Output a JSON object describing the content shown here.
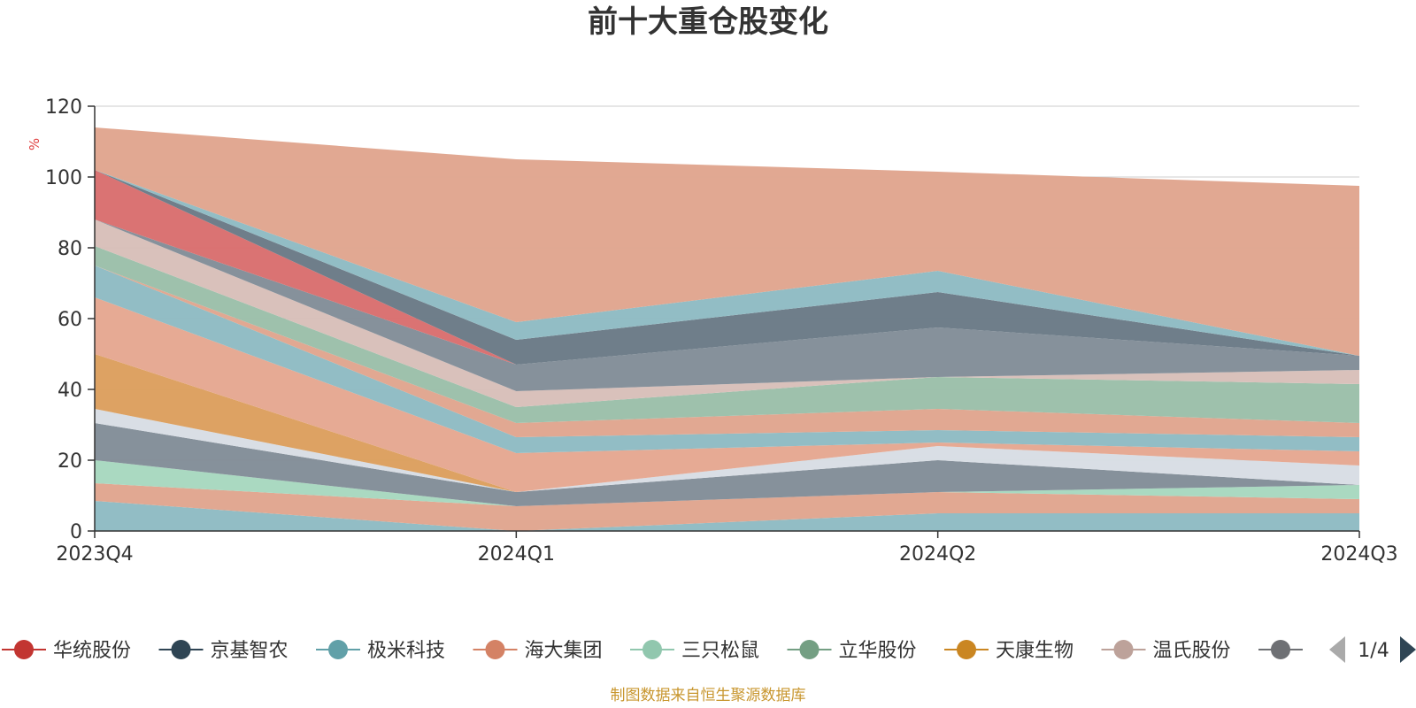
{
  "chart_data": {
    "type": "area",
    "stacked": true,
    "title": "前十大重仓股变化",
    "ylabel": "%",
    "ylim": [
      0,
      120
    ],
    "yticks": [
      0,
      20,
      40,
      60,
      80,
      100,
      120
    ],
    "categories": [
      "2023Q4",
      "2024Q1",
      "2024Q2",
      "2024Q3"
    ],
    "grid": true,
    "legend_position": "bottom",
    "legend_page": "1/4",
    "source_note": "制图数据来自恒生聚源数据库",
    "series": [
      {
        "values": [
          8.5,
          0,
          5.0,
          5.0
        ],
        "color": "#90bcc4"
      },
      {
        "values": [
          5.0,
          7.0,
          6.0,
          4.0
        ],
        "color": "#e0a690"
      },
      {
        "values": [
          6.5,
          0,
          0,
          4.0
        ],
        "color": "#a8d8c0"
      },
      {
        "values": [
          10.5,
          4.0,
          9.0,
          0
        ],
        "color": "#848f99"
      },
      {
        "values": [
          4.0,
          0,
          4.0,
          5.5
        ],
        "color": "#d8dde4"
      },
      {
        "values": [
          15.5,
          0,
          0,
          0
        ],
        "color": "#dca060"
      },
      {
        "values": [
          16.0,
          11.0,
          1.0,
          4.0
        ],
        "color": "#e6a892"
      },
      {
        "values": [
          9.0,
          4.5,
          3.5,
          4.0
        ],
        "color": "#90bcc4"
      },
      {
        "values": [
          0,
          4.0,
          6.0,
          4.0
        ],
        "color": "#e0a690"
      },
      {
        "values": [
          5.5,
          4.5,
          9.0,
          11.0
        ],
        "color": "#9cc0aa"
      },
      {
        "values": [
          7.5,
          4.5,
          0,
          4.0
        ],
        "color": "#d8c0ba"
      },
      {
        "values": [
          0,
          7.5,
          14.0,
          4.0
        ],
        "color": "#848f99"
      },
      {
        "values": [
          14.0,
          0,
          0,
          0
        ],
        "color": "#d97070"
      },
      {
        "values": [
          0,
          7.0,
          10.0,
          0
        ],
        "color": "#6c7b88"
      },
      {
        "values": [
          0,
          5.0,
          6.0,
          0
        ],
        "color": "#90bcc4"
      },
      {
        "values": [
          12.0,
          46.0,
          28.0,
          48.0
        ],
        "color": "#e0a690"
      }
    ]
  },
  "legend": {
    "items": [
      {
        "label": "华统股份",
        "color": "#c23531"
      },
      {
        "label": "京基智农",
        "color": "#2f4554"
      },
      {
        "label": "极米科技",
        "color": "#61a0a8"
      },
      {
        "label": "海大集团",
        "color": "#d48265"
      },
      {
        "label": "三只松鼠",
        "color": "#91c7ae"
      },
      {
        "label": "立华股份",
        "color": "#749f83"
      },
      {
        "label": "天康生物",
        "color": "#ca8622"
      },
      {
        "label": "温氏股份",
        "color": "#bda29a"
      },
      {
        "label": "",
        "color": "#6e7074"
      }
    ],
    "page": "1/4"
  }
}
